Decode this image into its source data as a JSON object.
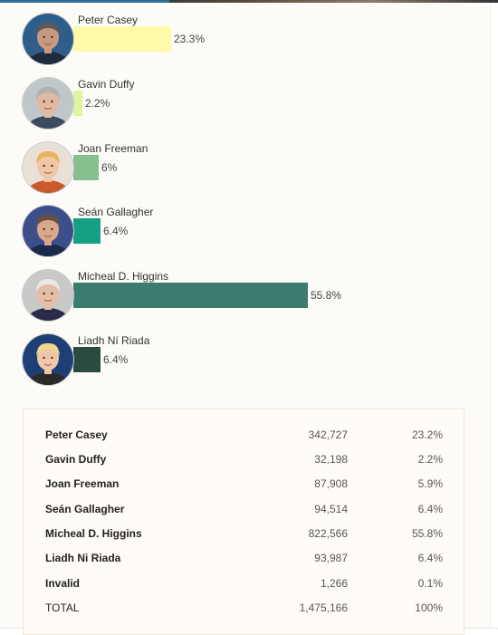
{
  "chart_data": {
    "type": "bar",
    "orientation": "horizontal",
    "categories": [
      "Peter Casey",
      "Gavin Duffy",
      "Joan Freeman",
      "Seán Gallagher",
      "Micheal D. Higgins",
      "Liadh Ní Riada"
    ],
    "values": [
      23.3,
      2.2,
      6,
      6.4,
      55.8,
      6.4
    ],
    "value_labels": [
      "23.3%",
      "2.2%",
      "6%",
      "6.4%",
      "55.8%",
      "6.4%"
    ],
    "bar_colors": [
      "#fffaa8",
      "#dff5a0",
      "#86c08e",
      "#15a084",
      "#3a7c6e",
      "#2b4a40"
    ],
    "xlim": [
      0,
      100
    ],
    "title": "",
    "xlabel": "",
    "ylabel": ""
  },
  "results_table": {
    "rows": [
      {
        "name": "Peter Casey",
        "votes": "342,727",
        "pct": "23.2%"
      },
      {
        "name": "Gavin Duffy",
        "votes": "32,198",
        "pct": "2.2%"
      },
      {
        "name": "Joan Freeman",
        "votes": "87,908",
        "pct": "5.9%"
      },
      {
        "name": "Seán Gallagher",
        "votes": "94,514",
        "pct": "6.4%"
      },
      {
        "name": "Micheal D. Higgins",
        "votes": "822,566",
        "pct": "55.8%"
      },
      {
        "name": "Liadh Ni Riada",
        "votes": "93,987",
        "pct": "6.4%"
      },
      {
        "name": "Invalid",
        "votes": "1,266",
        "pct": "0.1%"
      },
      {
        "name": "TOTAL",
        "votes": "1,475,166",
        "pct": "100%"
      }
    ]
  },
  "avatars": [
    {
      "icon": "candidate-photo",
      "bg": "#2f5d8a",
      "skin": "#c99a82",
      "hair": "#5a5a5a",
      "shirt": "#1f2a3a"
    },
    {
      "icon": "candidate-photo",
      "bg": "#bfc7c9",
      "skin": "#e1b8a0",
      "hair": "#b0b0b0",
      "shirt": "#3b4a5e"
    },
    {
      "icon": "candidate-photo",
      "bg": "#e9e1d6",
      "skin": "#f0c8a8",
      "hair": "#e6b25a",
      "shirt": "#c95a2a"
    },
    {
      "icon": "candidate-photo",
      "bg": "#3c4f8a",
      "skin": "#d9a88c",
      "hair": "#6a5040",
      "shirt": "#1a2a4a"
    },
    {
      "icon": "candidate-photo",
      "bg": "#c9c9c9",
      "skin": "#e5bda5",
      "hair": "#e8e8e8",
      "shirt": "#2a2a4a"
    },
    {
      "icon": "candidate-photo",
      "bg": "#1e3f75",
      "skin": "#f0c8a8",
      "hair": "#f0d68a",
      "shirt": "#2a2a2a"
    }
  ]
}
